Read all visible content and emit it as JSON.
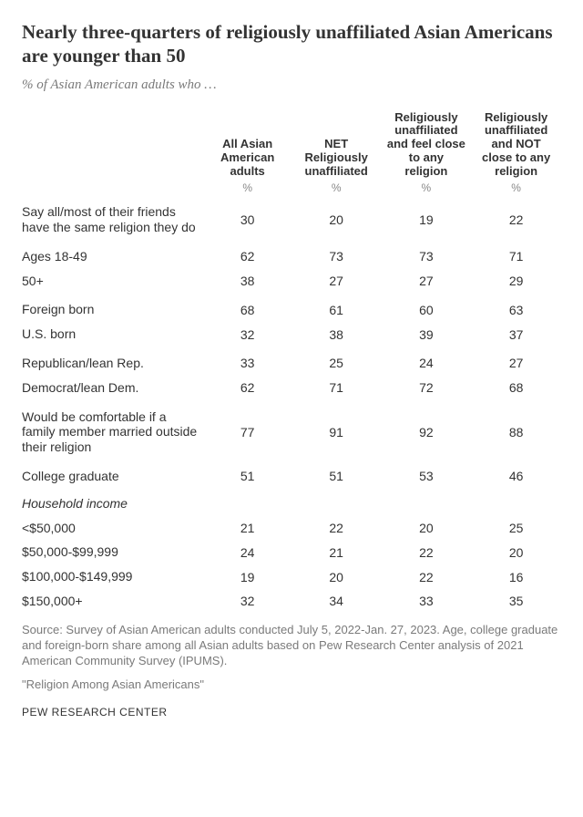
{
  "title": "Nearly three-quarters of religiously unaffiliated Asian Americans are younger than 50",
  "subtitle": "% of Asian American adults who …",
  "columns": [
    "All Asian American adults",
    "NET Religiously unaffiliated",
    "Religiously unaffiliated and feel close to any religion",
    "Religiously unaffiliated and NOT close to any religion"
  ],
  "pct_symbol": "%",
  "rows": [
    {
      "label": "Say all/most of their friends have the same religion they do",
      "vals": [
        "30",
        "20",
        "19",
        "22"
      ],
      "gap": false
    },
    {
      "label": "Ages 18-49",
      "vals": [
        "62",
        "73",
        "73",
        "71"
      ],
      "gap": true
    },
    {
      "label": "50+",
      "vals": [
        "38",
        "27",
        "27",
        "29"
      ],
      "gap": false
    },
    {
      "label": "Foreign born",
      "vals": [
        "68",
        "61",
        "60",
        "63"
      ],
      "gap": true
    },
    {
      "label": "U.S. born",
      "vals": [
        "32",
        "38",
        "39",
        "37"
      ],
      "gap": false
    },
    {
      "label": "Republican/lean Rep.",
      "vals": [
        "33",
        "25",
        "24",
        "27"
      ],
      "gap": true
    },
    {
      "label": "Democrat/lean Dem.",
      "vals": [
        "62",
        "71",
        "72",
        "68"
      ],
      "gap": false
    },
    {
      "label": "Would be comfortable if a family member married outside their religion",
      "vals": [
        "77",
        "91",
        "92",
        "88"
      ],
      "gap": true
    },
    {
      "label": "College graduate",
      "vals": [
        "51",
        "51",
        "53",
        "46"
      ],
      "gap": true
    }
  ],
  "income_header": "Household income",
  "income_rows": [
    {
      "label": "<$50,000",
      "vals": [
        "21",
        "22",
        "20",
        "25"
      ]
    },
    {
      "label": "$50,000-$99,999",
      "vals": [
        "24",
        "21",
        "22",
        "20"
      ]
    },
    {
      "label": "$100,000-$149,999",
      "vals": [
        "19",
        "20",
        "22",
        "16"
      ]
    },
    {
      "label": "$150,000+",
      "vals": [
        "32",
        "34",
        "33",
        "35"
      ]
    }
  ],
  "source": "Source: Survey of Asian American adults conducted July 5, 2022-Jan. 27, 2023. Age, college graduate and foreign-born share among all Asian adults based on Pew Research Center analysis of 2021 American Community Survey (IPUMS).",
  "report_title": "\"Religion Among Asian Americans\"",
  "attribution": "PEW RESEARCH CENTER",
  "style": {
    "title_fontsize": 21,
    "subtitle_fontsize": 15,
    "header_fontsize": 13,
    "body_fontsize": 14,
    "pct_fontsize": 12,
    "source_fontsize": 13,
    "attribution_fontsize": 12,
    "text_color": "#333333",
    "muted_color": "#7a7a7a",
    "background_color": "#ffffff"
  }
}
